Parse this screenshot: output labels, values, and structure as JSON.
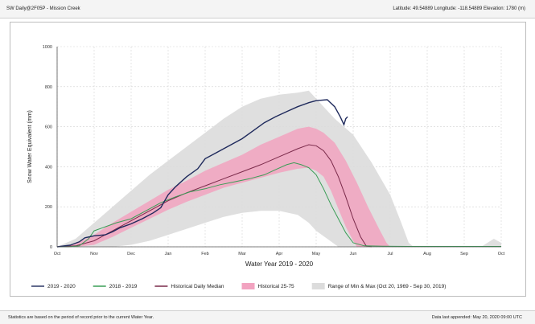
{
  "header": {
    "station": "SW Daily@2F05P - Mission Creek",
    "location": "Latitude: 49.54889 Longitude: -118.54889 Elevation: 1780 (m)"
  },
  "footer": {
    "note": "Statistics are based on the period of record prior to the current Water Year.",
    "appended": "Data last appended: May 20, 2020 09:00 UTC"
  },
  "colors": {
    "current": "#1f2a5c",
    "prior": "#3a9d56",
    "median": "#7a2a4a",
    "p25_75": "#f2a3c0",
    "minmax": "#dcdcdc"
  },
  "chart_data": {
    "type": "line",
    "title": "",
    "xlabel": "Water Year 2019 - 2020",
    "ylabel": "Snow Water Equivalent (mm)",
    "x_ticks": [
      "Oct",
      "Nov",
      "Dec",
      "Jan",
      "Feb",
      "Mar",
      "Apr",
      "May",
      "Jun",
      "Jul",
      "Aug",
      "Sep",
      "Oct"
    ],
    "y_ticks": [
      "0",
      "200",
      "400",
      "600",
      "800",
      "1000"
    ],
    "ylim": [
      0,
      1000
    ],
    "x_unit": "months since Oct 1",
    "grid": true,
    "legend_position": "bottom",
    "series": [
      {
        "name": "2019 - 2020",
        "kind": "line",
        "color_key": "current",
        "points": [
          [
            0,
            0
          ],
          [
            0.35,
            8
          ],
          [
            0.6,
            25
          ],
          [
            0.75,
            45
          ],
          [
            1,
            55
          ],
          [
            1.3,
            60
          ],
          [
            1.5,
            75
          ],
          [
            1.7,
            95
          ],
          [
            2,
            115
          ],
          [
            2.3,
            140
          ],
          [
            2.6,
            170
          ],
          [
            2.8,
            195
          ],
          [
            3,
            260
          ],
          [
            3.2,
            300
          ],
          [
            3.5,
            350
          ],
          [
            3.8,
            390
          ],
          [
            4,
            440
          ],
          [
            4.3,
            470
          ],
          [
            4.6,
            500
          ],
          [
            5,
            540
          ],
          [
            5.3,
            580
          ],
          [
            5.6,
            620
          ],
          [
            5.9,
            650
          ],
          [
            6.2,
            675
          ],
          [
            6.5,
            700
          ],
          [
            6.8,
            720
          ],
          [
            7,
            730
          ],
          [
            7.3,
            735
          ],
          [
            7.5,
            700
          ],
          [
            7.65,
            650
          ],
          [
            7.75,
            610
          ],
          [
            7.8,
            640
          ],
          [
            7.85,
            650
          ]
        ]
      },
      {
        "name": "2018 - 2019",
        "kind": "line",
        "color_key": "prior",
        "points": [
          [
            0,
            0
          ],
          [
            0.3,
            0
          ],
          [
            0.6,
            5
          ],
          [
            0.85,
            40
          ],
          [
            1,
            80
          ],
          [
            1.3,
            100
          ],
          [
            1.6,
            120
          ],
          [
            2,
            140
          ],
          [
            2.4,
            180
          ],
          [
            2.8,
            220
          ],
          [
            3.2,
            250
          ],
          [
            3.6,
            275
          ],
          [
            4,
            290
          ],
          [
            4.4,
            310
          ],
          [
            4.8,
            325
          ],
          [
            5.2,
            340
          ],
          [
            5.6,
            360
          ],
          [
            5.9,
            385
          ],
          [
            6.2,
            410
          ],
          [
            6.4,
            420
          ],
          [
            6.6,
            410
          ],
          [
            6.8,
            395
          ],
          [
            7,
            360
          ],
          [
            7.2,
            290
          ],
          [
            7.4,
            210
          ],
          [
            7.6,
            140
          ],
          [
            7.8,
            70
          ],
          [
            8,
            20
          ],
          [
            8.3,
            5
          ],
          [
            8.8,
            3
          ],
          [
            9.5,
            2
          ],
          [
            10.5,
            2
          ],
          [
            11.5,
            2
          ],
          [
            12,
            2
          ]
        ]
      },
      {
        "name": "Historical Daily Median",
        "kind": "line",
        "color_key": "median",
        "points": [
          [
            0,
            0
          ],
          [
            0.5,
            5
          ],
          [
            1,
            30
          ],
          [
            1.5,
            80
          ],
          [
            2,
            130
          ],
          [
            2.5,
            180
          ],
          [
            3,
            230
          ],
          [
            3.5,
            270
          ],
          [
            4,
            305
          ],
          [
            4.5,
            340
          ],
          [
            5,
            375
          ],
          [
            5.5,
            410
          ],
          [
            6,
            450
          ],
          [
            6.5,
            490
          ],
          [
            6.8,
            510
          ],
          [
            7,
            505
          ],
          [
            7.2,
            480
          ],
          [
            7.4,
            430
          ],
          [
            7.6,
            350
          ],
          [
            7.8,
            250
          ],
          [
            8,
            140
          ],
          [
            8.2,
            50
          ],
          [
            8.35,
            5
          ],
          [
            8.5,
            0
          ]
        ]
      },
      {
        "name": "Historical 25-75",
        "kind": "band",
        "color_key": "p25_75",
        "upper": [
          [
            0,
            0
          ],
          [
            0.5,
            15
          ],
          [
            1,
            60
          ],
          [
            1.5,
            120
          ],
          [
            2,
            175
          ],
          [
            2.5,
            230
          ],
          [
            3,
            285
          ],
          [
            3.5,
            330
          ],
          [
            4,
            380
          ],
          [
            4.5,
            420
          ],
          [
            5,
            460
          ],
          [
            5.5,
            510
          ],
          [
            6,
            550
          ],
          [
            6.5,
            590
          ],
          [
            6.8,
            600
          ],
          [
            7,
            590
          ],
          [
            7.2,
            570
          ],
          [
            7.5,
            520
          ],
          [
            7.8,
            430
          ],
          [
            8.1,
            320
          ],
          [
            8.4,
            200
          ],
          [
            8.7,
            90
          ],
          [
            8.9,
            20
          ],
          [
            9,
            0
          ]
        ],
        "lower": [
          [
            0,
            0
          ],
          [
            0.5,
            0
          ],
          [
            1,
            10
          ],
          [
            1.5,
            50
          ],
          [
            2,
            95
          ],
          [
            2.5,
            140
          ],
          [
            3,
            185
          ],
          [
            3.5,
            225
          ],
          [
            4,
            260
          ],
          [
            4.5,
            295
          ],
          [
            5,
            320
          ],
          [
            5.5,
            345
          ],
          [
            6,
            370
          ],
          [
            6.5,
            390
          ],
          [
            6.8,
            395
          ],
          [
            7,
            380
          ],
          [
            7.2,
            350
          ],
          [
            7.4,
            280
          ],
          [
            7.6,
            190
          ],
          [
            7.8,
            100
          ],
          [
            8,
            30
          ],
          [
            8.1,
            0
          ]
        ]
      },
      {
        "name": "Range of Min & Max (Oct 20, 1969 - Sep 30, 2019)",
        "kind": "band",
        "color_key": "minmax",
        "upper": [
          [
            0,
            0
          ],
          [
            0.5,
            40
          ],
          [
            1,
            120
          ],
          [
            1.5,
            200
          ],
          [
            2,
            280
          ],
          [
            2.5,
            360
          ],
          [
            3,
            430
          ],
          [
            3.5,
            500
          ],
          [
            4,
            570
          ],
          [
            4.5,
            640
          ],
          [
            5,
            700
          ],
          [
            5.5,
            740
          ],
          [
            6,
            760
          ],
          [
            6.5,
            770
          ],
          [
            6.8,
            780
          ],
          [
            7,
            740
          ],
          [
            7.2,
            700
          ],
          [
            7.5,
            640
          ],
          [
            8,
            560
          ],
          [
            8.5,
            420
          ],
          [
            9,
            260
          ],
          [
            9.3,
            120
          ],
          [
            9.5,
            20
          ],
          [
            9.6,
            5
          ],
          [
            11.5,
            5
          ],
          [
            11.8,
            40
          ],
          [
            12,
            20
          ]
        ],
        "lower": [
          [
            0,
            0
          ],
          [
            1,
            0
          ],
          [
            1.5,
            0
          ],
          [
            2,
            10
          ],
          [
            2.5,
            30
          ],
          [
            3,
            60
          ],
          [
            3.5,
            90
          ],
          [
            4,
            120
          ],
          [
            4.5,
            150
          ],
          [
            5,
            170
          ],
          [
            5.5,
            180
          ],
          [
            6,
            180
          ],
          [
            6.5,
            160
          ],
          [
            6.8,
            120
          ],
          [
            7,
            80
          ],
          [
            7.3,
            40
          ],
          [
            7.6,
            0
          ],
          [
            12,
            0
          ]
        ]
      }
    ]
  }
}
